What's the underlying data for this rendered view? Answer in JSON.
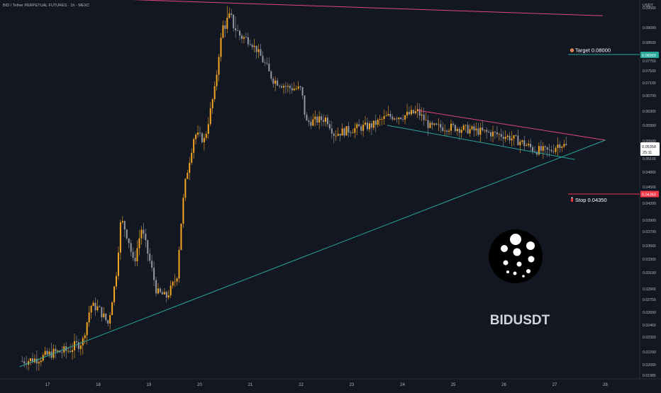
{
  "header": {
    "symbol_title": "BID / Tether PERPETUAL FUTURES · 1h · MEXC",
    "currency": "USDT"
  },
  "price_axis": {
    "ticks": [
      "0.09500",
      "0.09000",
      "0.08500",
      "0.08000",
      "0.07750",
      "0.07500",
      "0.07100",
      "0.06700",
      "0.06300",
      "0.05900",
      "0.05500",
      "0.05100",
      "0.04800",
      "0.04500",
      "0.04200",
      "0.03900",
      "0.03700",
      "0.03500",
      "0.03300",
      "0.03100",
      "0.02900",
      "0.02750",
      "0.02600",
      "0.02460",
      "0.02320",
      "0.02200",
      "0.02090",
      "0.01985"
    ],
    "current_price": "0.05358",
    "countdown": "25:11",
    "target_badge": "0.08000",
    "stop_badge": "0.04350"
  },
  "time_axis": {
    "ticks": [
      "17",
      "18",
      "19",
      "20",
      "21",
      "22",
      "23",
      "24",
      "25",
      "26",
      "27",
      "28"
    ]
  },
  "annotations": {
    "target_label": "Target 0.08000",
    "target_icon": "target-icon",
    "stop_label": "Stop 0.04350",
    "stop_icon": "stop-icon"
  },
  "watermark": {
    "ticker": "BIDUSDT",
    "logo_icon": "bid-logo-icon"
  },
  "colors": {
    "background": "#131722",
    "up_candle": "#f5a623",
    "down_candle": "#9598a1",
    "resistance_line": "#e0467c",
    "support_line": "#26a69a",
    "target_line": "#26a69a",
    "stop_line": "#f23645",
    "axis_text": "#b2b5be"
  },
  "chart_data": {
    "type": "candlestick",
    "title": "BID / Tether PERPETUAL FUTURES · 1h · MEXC",
    "x_label_ticks": [
      "17",
      "18",
      "19",
      "20",
      "21",
      "22",
      "23",
      "24",
      "25",
      "26",
      "27",
      "28"
    ],
    "y_unit": "USDT",
    "target": 0.08,
    "stop": 0.0435,
    "last_price": 0.05358,
    "close_path": [
      {
        "day": 16.5,
        "price": 0.0212
      },
      {
        "day": 16.8,
        "price": 0.0214
      },
      {
        "day": 17.1,
        "price": 0.0219
      },
      {
        "day": 17.4,
        "price": 0.0221
      },
      {
        "day": 17.7,
        "price": 0.0229
      },
      {
        "day": 17.85,
        "price": 0.0268
      },
      {
        "day": 18.0,
        "price": 0.0265
      },
      {
        "day": 18.2,
        "price": 0.0247
      },
      {
        "day": 18.35,
        "price": 0.0305
      },
      {
        "day": 18.45,
        "price": 0.0392
      },
      {
        "day": 18.6,
        "price": 0.0358
      },
      {
        "day": 18.7,
        "price": 0.0322
      },
      {
        "day": 18.85,
        "price": 0.0375
      },
      {
        "day": 19.0,
        "price": 0.0332
      },
      {
        "day": 19.15,
        "price": 0.0286
      },
      {
        "day": 19.35,
        "price": 0.0279
      },
      {
        "day": 19.55,
        "price": 0.0305
      },
      {
        "day": 19.7,
        "price": 0.0448
      },
      {
        "day": 19.9,
        "price": 0.0568
      },
      {
        "day": 20.1,
        "price": 0.0552
      },
      {
        "day": 20.3,
        "price": 0.069
      },
      {
        "day": 20.45,
        "price": 0.09
      },
      {
        "day": 20.6,
        "price": 0.0925
      },
      {
        "day": 20.8,
        "price": 0.0872
      },
      {
        "day": 21.0,
        "price": 0.0855
      },
      {
        "day": 21.2,
        "price": 0.079
      },
      {
        "day": 21.45,
        "price": 0.072
      },
      {
        "day": 21.75,
        "price": 0.0695
      },
      {
        "day": 22.0,
        "price": 0.069
      },
      {
        "day": 22.1,
        "price": 0.0598
      },
      {
        "day": 22.5,
        "price": 0.061
      },
      {
        "day": 22.65,
        "price": 0.0568
      },
      {
        "day": 23.0,
        "price": 0.058
      },
      {
        "day": 23.4,
        "price": 0.059
      },
      {
        "day": 23.7,
        "price": 0.0615
      },
      {
        "day": 24.0,
        "price": 0.0616
      },
      {
        "day": 24.3,
        "price": 0.0628
      },
      {
        "day": 24.55,
        "price": 0.0585
      },
      {
        "day": 25.0,
        "price": 0.0585
      },
      {
        "day": 25.5,
        "price": 0.0575
      },
      {
        "day": 26.0,
        "price": 0.0564
      },
      {
        "day": 26.3,
        "price": 0.055
      },
      {
        "day": 26.6,
        "price": 0.053
      },
      {
        "day": 26.9,
        "price": 0.0526
      },
      {
        "day": 27.1,
        "price": 0.0545
      },
      {
        "day": 27.25,
        "price": 0.0536
      }
    ],
    "trendlines": [
      {
        "name": "upper-descending",
        "from": {
          "day": 16.5,
          "price": 0.098
        },
        "to": {
          "day": 27.95,
          "price": 0.093
        }
      },
      {
        "name": "triangle-upper",
        "from": {
          "day": 24.3,
          "price": 0.0632
        },
        "to": {
          "day": 28.0,
          "price": 0.0552
        }
      },
      {
        "name": "triangle-lower",
        "from": {
          "day": 23.7,
          "price": 0.059
        },
        "to": {
          "day": 27.4,
          "price": 0.0508
        }
      },
      {
        "name": "ascending-support",
        "from": {
          "day": 16.45,
          "price": 0.0207
        },
        "to": {
          "day": 28.0,
          "price": 0.0552
        }
      }
    ]
  }
}
